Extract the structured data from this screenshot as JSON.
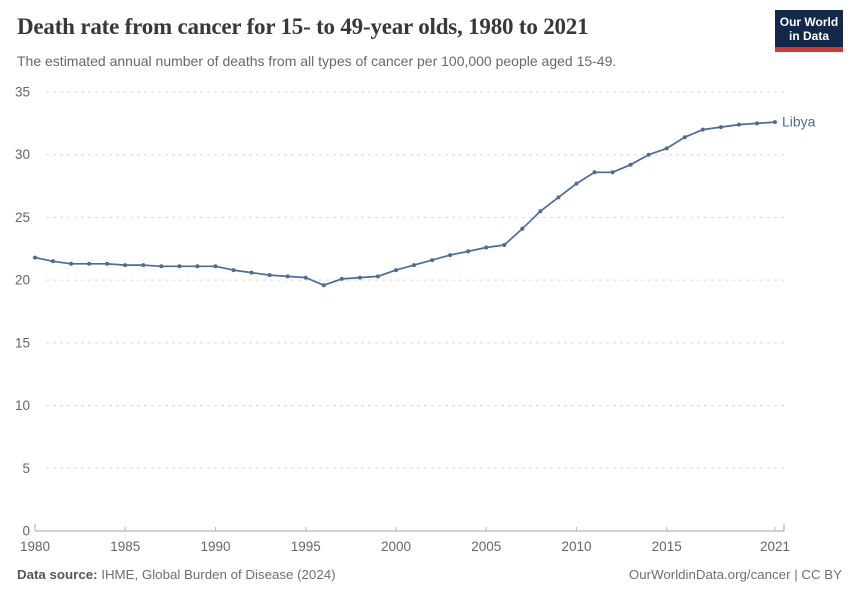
{
  "header": {
    "title": "Death rate from cancer for 15- to 49-year olds, 1980 to 2021",
    "subtitle": "The estimated annual number of deaths from all types of cancer per 100,000 people aged 15-49.",
    "logo": {
      "line1": "Our World",
      "line2": "in Data",
      "bg_color": "#12294b",
      "accent_color": "#d7382e"
    }
  },
  "chart_data": {
    "type": "line",
    "title": "Death rate from cancer for 15- to 49-year olds, 1980 to 2021",
    "x": [
      1980,
      1981,
      1982,
      1983,
      1984,
      1985,
      1986,
      1987,
      1988,
      1989,
      1990,
      1991,
      1992,
      1993,
      1994,
      1995,
      1996,
      1997,
      1998,
      1999,
      2000,
      2001,
      2002,
      2003,
      2004,
      2005,
      2006,
      2007,
      2008,
      2009,
      2010,
      2011,
      2012,
      2013,
      2014,
      2015,
      2016,
      2017,
      2018,
      2019,
      2020,
      2021
    ],
    "series": [
      {
        "name": "Libya",
        "color": "#4c6a9c",
        "values": [
          21.8,
          21.5,
          21.3,
          21.3,
          21.3,
          21.2,
          21.2,
          21.1,
          21.1,
          21.1,
          21.1,
          20.8,
          20.6,
          20.4,
          20.3,
          20.2,
          19.6,
          20.1,
          20.2,
          20.3,
          20.8,
          21.2,
          21.6,
          22.0,
          22.3,
          22.6,
          22.8,
          24.1,
          25.5,
          26.6,
          27.7,
          28.6,
          28.6,
          29.2,
          30.0,
          30.5,
          31.4,
          32.0,
          32.2,
          32.4,
          32.5,
          32.6
        ]
      }
    ],
    "ylim": [
      0,
      35
    ],
    "yticks": [
      0,
      5,
      10,
      15,
      20,
      25,
      30,
      35
    ],
    "xticks": [
      1980,
      1985,
      1990,
      1995,
      2000,
      2005,
      2010,
      2015,
      2021
    ],
    "grid": "horizontal-dashed",
    "grid_color": "#dadada",
    "axis_color": "#a3a3a3",
    "tick_label_color": "#666666",
    "legend_position": "end-of-line",
    "end_label": "Libya"
  },
  "footer": {
    "source_label": "Data source:",
    "source_text": " IHME, Global Burden of Disease (2024)",
    "credit": "OurWorldinData.org/cancer | CC BY"
  }
}
